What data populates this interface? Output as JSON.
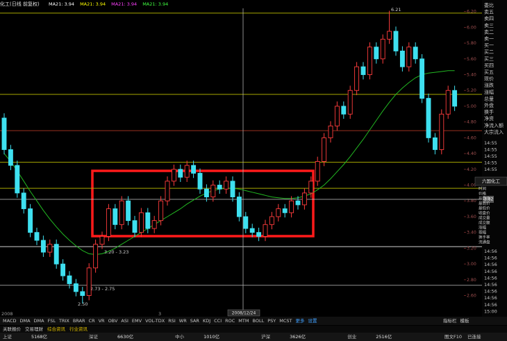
{
  "chart_data": {
    "type": "candlestick",
    "title": "化工(日线 前复权)",
    "ma_legend": [
      {
        "label": "MA21: 3.94",
        "color": "#ffffff"
      },
      {
        "label": "MA21: 3.94",
        "color": "#ffff00"
      },
      {
        "label": "MA21: 3.94",
        "color": "#ff40ff"
      },
      {
        "label": "MA21: 3.94",
        "color": "#40ff40"
      }
    ],
    "open": [
      4.85,
      4.45,
      4.25,
      3.9,
      3.7,
      3.4,
      3.3,
      3.15,
      3.25,
      3.0,
      2.85,
      2.75,
      2.65,
      2.6,
      2.95,
      3.25,
      3.35,
      3.7,
      3.5,
      3.8,
      3.55,
      3.4,
      3.65,
      3.45,
      3.55,
      3.8,
      4.05,
      4.2,
      4.1,
      4.25,
      4.15,
      3.95,
      3.85,
      4.0,
      3.95,
      4.05,
      3.85,
      3.6,
      3.45,
      3.4,
      3.35,
      3.5,
      3.6,
      3.7,
      3.65,
      3.8,
      3.75,
      3.9,
      4.05,
      4.3,
      4.6,
      4.75,
      5.0,
      4.9,
      5.2,
      5.5,
      5.4,
      5.75,
      5.6,
      5.85,
      5.95,
      5.7,
      5.5,
      5.75,
      5.6,
      5.1,
      4.6,
      4.45,
      4.9,
      5.2
    ],
    "high": [
      4.91,
      4.51,
      4.31,
      3.96,
      3.76,
      3.46,
      3.36,
      3.31,
      3.31,
      3.06,
      2.91,
      2.81,
      2.71,
      3.01,
      3.31,
      3.41,
      3.76,
      3.76,
      3.86,
      3.86,
      3.61,
      3.71,
      3.71,
      3.61,
      3.86,
      4.11,
      4.26,
      4.26,
      4.31,
      4.31,
      4.21,
      4.01,
      4.06,
      4.06,
      4.11,
      4.11,
      3.91,
      3.66,
      3.51,
      3.46,
      3.56,
      3.66,
      3.76,
      3.76,
      3.86,
      3.86,
      3.96,
      4.11,
      4.36,
      4.66,
      4.81,
      5.06,
      5.06,
      5.26,
      5.56,
      5.56,
      5.81,
      5.81,
      5.91,
      6.21,
      6.01,
      5.76,
      5.81,
      5.81,
      5.66,
      5.16,
      4.66,
      4.96,
      5.26,
      5.26
    ],
    "low": [
      4.39,
      4.19,
      3.84,
      3.64,
      3.34,
      3.24,
      3.09,
      3.09,
      2.94,
      2.79,
      2.69,
      2.59,
      2.5,
      2.54,
      2.89,
      3.19,
      3.29,
      3.44,
      3.44,
      3.49,
      3.34,
      3.34,
      3.39,
      3.39,
      3.49,
      3.74,
      3.99,
      4.04,
      4.04,
      4.09,
      3.89,
      3.79,
      3.79,
      3.89,
      3.89,
      3.79,
      3.54,
      3.39,
      3.34,
      3.29,
      3.29,
      3.44,
      3.54,
      3.59,
      3.59,
      3.69,
      3.69,
      3.84,
      3.99,
      4.24,
      4.54,
      4.69,
      4.84,
      4.84,
      5.14,
      5.34,
      5.34,
      5.54,
      5.54,
      5.79,
      5.64,
      5.44,
      5.44,
      5.54,
      5.04,
      4.54,
      4.39,
      4.39,
      4.84,
      4.94
    ],
    "close": [
      4.45,
      4.25,
      3.9,
      3.7,
      3.4,
      3.3,
      3.15,
      3.25,
      3.0,
      2.85,
      2.75,
      2.65,
      2.6,
      2.95,
      3.25,
      3.35,
      3.7,
      3.5,
      3.8,
      3.55,
      3.4,
      3.65,
      3.45,
      3.55,
      3.8,
      4.05,
      4.2,
      4.1,
      4.25,
      4.15,
      3.95,
      3.85,
      4.0,
      3.95,
      4.05,
      3.85,
      3.6,
      3.45,
      3.4,
      3.35,
      3.5,
      3.6,
      3.7,
      3.65,
      3.8,
      3.75,
      3.9,
      4.05,
      4.3,
      4.6,
      4.75,
      5.0,
      4.9,
      5.2,
      5.5,
      5.4,
      5.75,
      5.6,
      5.85,
      5.95,
      5.7,
      5.5,
      5.75,
      5.6,
      5.1,
      4.6,
      4.45,
      4.9,
      5.2,
      5.0
    ],
    "up_color": "#ff3c3c",
    "down_color": "#3ee0f0",
    "ma": {
      "color": "#22b822",
      "values": [
        4.4,
        4.3,
        4.18,
        4.05,
        3.92,
        3.8,
        3.68,
        3.57,
        3.47,
        3.38,
        3.3,
        3.23,
        3.17,
        3.13,
        3.12,
        3.13,
        3.16,
        3.2,
        3.25,
        3.3,
        3.35,
        3.4,
        3.45,
        3.5,
        3.55,
        3.6,
        3.65,
        3.7,
        3.76,
        3.81,
        3.86,
        3.9,
        3.93,
        3.95,
        3.96,
        3.96,
        3.95,
        3.93,
        3.91,
        3.89,
        3.87,
        3.85,
        3.84,
        3.83,
        3.83,
        3.84,
        3.86,
        3.89,
        3.94,
        4.0,
        4.08,
        4.17,
        4.26,
        4.36,
        4.47,
        4.58,
        4.7,
        4.82,
        4.94,
        5.05,
        5.15,
        5.23,
        5.3,
        5.36,
        5.4,
        5.42,
        5.43,
        5.44,
        5.45,
        5.45
      ]
    },
    "ylim": [
      2.42,
      6.32
    ],
    "yticks": [
      {
        "value": 2.6,
        "label": "2.60"
      },
      {
        "value": 2.8,
        "label": "2.80"
      },
      {
        "value": 3.0,
        "label": "3.00"
      },
      {
        "value": 3.2,
        "label": "3.20"
      },
      {
        "value": 3.4,
        "label": "3.40"
      },
      {
        "value": 3.6,
        "label": "3.60"
      },
      {
        "value": 3.8,
        "label": "3.80"
      },
      {
        "value": 4.0,
        "label": "4.00"
      },
      {
        "value": 4.2,
        "label": "4.20"
      },
      {
        "value": 4.4,
        "label": "4.40"
      },
      {
        "value": 4.6,
        "label": "4.60"
      },
      {
        "value": 4.8,
        "label": "4.80"
      },
      {
        "value": 5.0,
        "label": "5.00"
      },
      {
        "value": 5.2,
        "label": "5.20"
      },
      {
        "value": 5.4,
        "label": "5.40"
      },
      {
        "value": 5.6,
        "label": "5.60"
      },
      {
        "value": 5.8,
        "label": "5.80"
      },
      {
        "value": 6.0,
        "label": "6.00"
      },
      {
        "value": 6.2,
        "label": "6.20"
      }
    ],
    "levels": [
      {
        "value": 6.18,
        "color": "#a8a800"
      },
      {
        "value": 5.15,
        "color": "#a8a800"
      },
      {
        "value": 4.69,
        "color": "#9a3020"
      },
      {
        "value": 4.29,
        "color": "#a8a800"
      },
      {
        "value": 3.96,
        "color": "#a8a800"
      },
      {
        "value": 3.22,
        "color": "#d0d0d0"
      },
      {
        "value": 2.73,
        "color": "#909090"
      }
    ],
    "crosshair": {
      "value": 3.82,
      "date": "2008/12/24"
    },
    "annotations": [
      "6.21",
      "3.20 - 3.23",
      "2.73 - 2.75",
      "2.50"
    ],
    "x_labels": [
      "2008",
      "3"
    ]
  },
  "indicator_bar": {
    "items": [
      "MACD",
      "DMA",
      "DMA",
      "FSL",
      "TRIX",
      "BRAR",
      "CR",
      "VR",
      "OBV",
      "ASI",
      "EMV",
      "VOL-TDX",
      "RSI",
      "WR",
      "SAR",
      "KDJ",
      "CCI",
      "ROC",
      "MTM",
      "BOLL",
      "PSY",
      "MCST",
      "更多",
      "设置"
    ],
    "right": [
      "指标栏",
      "模板"
    ]
  },
  "status_bar": {
    "links": [
      "关联报价",
      "交易理财",
      "综合资讯",
      "行业资讯"
    ],
    "markets": [
      "上证",
      "5168亿",
      "深证",
      "6630亿",
      "中小",
      "1010亿",
      "沪深",
      "3626亿",
      "创业",
      "2516亿"
    ],
    "right": [
      "图文F10",
      "已连接"
    ]
  },
  "quote_panel": {
    "labels": [
      "委比",
      "卖五",
      "卖四",
      "卖三",
      "卖二",
      "卖一",
      "买一",
      "买二",
      "买三",
      "买四",
      "买五",
      "现价",
      "涨跌",
      "涨幅",
      "总量",
      "外盘",
      "换手",
      "净资",
      "净流入额",
      "大宗流入"
    ],
    "times_upper": [
      "14:55",
      "14:55",
      "14:55",
      "14:55",
      "14:55"
    ],
    "box_title": "六国化工",
    "box_labels": [
      "时间",
      "价格",
      "开盘价",
      "最高价",
      "最低价",
      "收盘价",
      "成交量",
      "成交额",
      "涨幅",
      "振幅",
      "换手率",
      "流通盘"
    ],
    "times_lower": [
      "14:56",
      "14:56",
      "14:56",
      "14:56",
      "14:56",
      "14:56",
      "14:56",
      "14:56",
      "14:56",
      "15:00"
    ]
  }
}
